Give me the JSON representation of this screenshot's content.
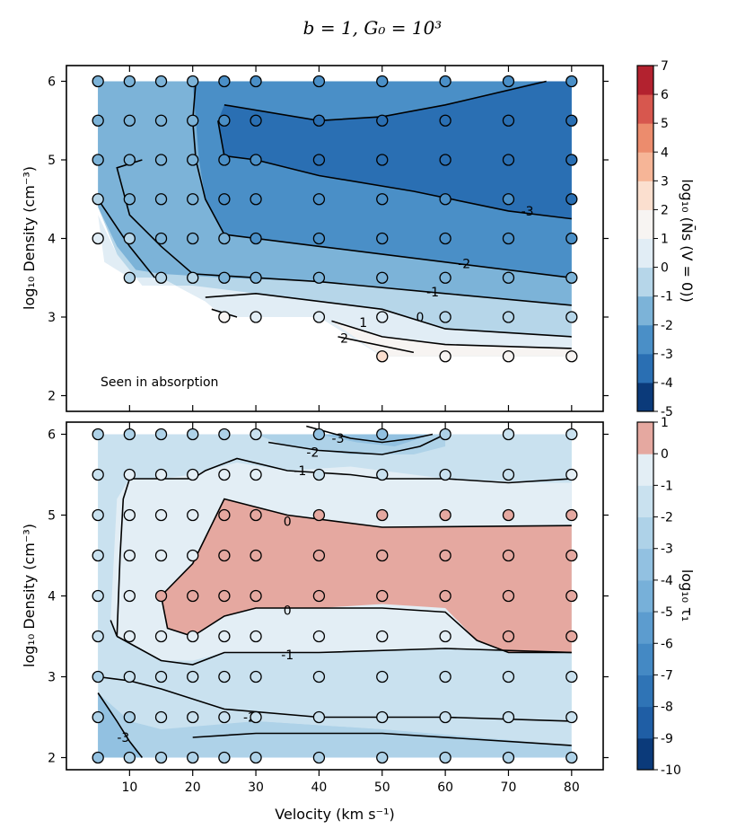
{
  "figure": {
    "title": "b = 1, G₀ = 10³"
  },
  "chart_data": [
    {
      "type": "contour",
      "panel": "top",
      "title": "",
      "xlabel": "",
      "ylabel": "log₁₀ Density (cm⁻³)",
      "xlim": [
        0,
        85
      ],
      "ylim": [
        1.8,
        6.2
      ],
      "xticks": [
        10,
        20,
        30,
        40,
        50,
        60,
        70,
        80
      ],
      "yticks": [
        2,
        3,
        4,
        5,
        6
      ],
      "colorbar": {
        "label": "log₁₀ (N̄s (V = 0))",
        "levels": [
          -5,
          -4,
          -3,
          -2,
          -1,
          0,
          1,
          2,
          3,
          4,
          5,
          6,
          7
        ],
        "tick_labels": [
          "-5",
          "-4",
          "-3",
          "-2",
          "-1",
          "0",
          "1",
          "2",
          "3",
          "4",
          "5",
          "6",
          "7"
        ]
      },
      "annotation": "Seen in absorption",
      "contour_labels": [
        "-3",
        "-2",
        "-1",
        "0",
        "1",
        "2"
      ],
      "points": [
        {
          "v": 5,
          "d": 6,
          "z": -1.5
        },
        {
          "v": 10,
          "d": 6,
          "z": -1.5
        },
        {
          "v": 15,
          "d": 6,
          "z": -1.5
        },
        {
          "v": 20,
          "d": 6,
          "z": -1.8
        },
        {
          "v": 25,
          "d": 6,
          "z": -2.2
        },
        {
          "v": 30,
          "d": 6,
          "z": -2.2
        },
        {
          "v": 40,
          "d": 6,
          "z": -2.3
        },
        {
          "v": 50,
          "d": 6,
          "z": -2.4
        },
        {
          "v": 60,
          "d": 6,
          "z": -2.5
        },
        {
          "v": 70,
          "d": 6,
          "z": -2.6
        },
        {
          "v": 80,
          "d": 6,
          "z": -2.8
        },
        {
          "v": 5,
          "d": 5.5,
          "z": -1.5
        },
        {
          "v": 10,
          "d": 5.5,
          "z": -1.5
        },
        {
          "v": 15,
          "d": 5.5,
          "z": -1.5
        },
        {
          "v": 20,
          "d": 5.5,
          "z": -1.8
        },
        {
          "v": 25,
          "d": 5.5,
          "z": -2.8
        },
        {
          "v": 30,
          "d": 5.5,
          "z": -3.2
        },
        {
          "v": 40,
          "d": 5.5,
          "z": -3.3
        },
        {
          "v": 50,
          "d": 5.5,
          "z": -3.3
        },
        {
          "v": 60,
          "d": 5.5,
          "z": -3.3
        },
        {
          "v": 70,
          "d": 5.5,
          "z": -3.3
        },
        {
          "v": 80,
          "d": 5.5,
          "z": -3.3
        },
        {
          "v": 5,
          "d": 5,
          "z": -1.2
        },
        {
          "v": 10,
          "d": 5,
          "z": -1.5
        },
        {
          "v": 15,
          "d": 5,
          "z": -1.5
        },
        {
          "v": 20,
          "d": 5,
          "z": -1.8
        },
        {
          "v": 25,
          "d": 5,
          "z": -2.8
        },
        {
          "v": 30,
          "d": 5,
          "z": -3.0
        },
        {
          "v": 40,
          "d": 5,
          "z": -3.2
        },
        {
          "v": 50,
          "d": 5,
          "z": -3.3
        },
        {
          "v": 60,
          "d": 5,
          "z": -3.3
        },
        {
          "v": 70,
          "d": 5,
          "z": -3.4
        },
        {
          "v": 80,
          "d": 5,
          "z": -3.4
        },
        {
          "v": 5,
          "d": 4.5,
          "z": -0.5
        },
        {
          "v": 10,
          "d": 4.5,
          "z": -1.2
        },
        {
          "v": 15,
          "d": 4.5,
          "z": -1.5
        },
        {
          "v": 20,
          "d": 4.5,
          "z": -1.8
        },
        {
          "v": 25,
          "d": 4.5,
          "z": -2.5
        },
        {
          "v": 30,
          "d": 4.5,
          "z": -2.6
        },
        {
          "v": 40,
          "d": 4.5,
          "z": -2.8
        },
        {
          "v": 50,
          "d": 4.5,
          "z": -2.9
        },
        {
          "v": 60,
          "d": 4.5,
          "z": -3.0
        },
        {
          "v": 70,
          "d": 4.5,
          "z": -3.0
        },
        {
          "v": 80,
          "d": 4.5,
          "z": -3.1
        },
        {
          "v": 5,
          "d": 4,
          "z": 0.5
        },
        {
          "v": 10,
          "d": 4,
          "z": -0.5
        },
        {
          "v": 15,
          "d": 4,
          "z": -1.2
        },
        {
          "v": 20,
          "d": 4,
          "z": -1.5
        },
        {
          "v": 25,
          "d": 4,
          "z": -2.0
        },
        {
          "v": 30,
          "d": 4,
          "z": -2.1
        },
        {
          "v": 40,
          "d": 4,
          "z": -2.3
        },
        {
          "v": 50,
          "d": 4,
          "z": -2.4
        },
        {
          "v": 60,
          "d": 4,
          "z": -2.5
        },
        {
          "v": 70,
          "d": 4,
          "z": -2.6
        },
        {
          "v": 80,
          "d": 4,
          "z": -2.7
        },
        {
          "v": 10,
          "d": 3.5,
          "z": -0.2
        },
        {
          "v": 15,
          "d": 3.5,
          "z": -0.8
        },
        {
          "v": 20,
          "d": 3.5,
          "z": -1.0
        },
        {
          "v": 25,
          "d": 3.5,
          "z": -1.1
        },
        {
          "v": 30,
          "d": 3.5,
          "z": -1.2
        },
        {
          "v": 40,
          "d": 3.5,
          "z": -1.5
        },
        {
          "v": 50,
          "d": 3.5,
          "z": -1.6
        },
        {
          "v": 60,
          "d": 3.5,
          "z": -1.7
        },
        {
          "v": 70,
          "d": 3.5,
          "z": -1.8
        },
        {
          "v": 80,
          "d": 3.5,
          "z": -2.0
        },
        {
          "v": 25,
          "d": 3,
          "z": 1.5
        },
        {
          "v": 30,
          "d": 3,
          "z": 0.5
        },
        {
          "v": 40,
          "d": 3,
          "z": 0.3
        },
        {
          "v": 50,
          "d": 3,
          "z": 0.0
        },
        {
          "v": 60,
          "d": 3,
          "z": -0.5
        },
        {
          "v": 70,
          "d": 3,
          "z": -0.6
        },
        {
          "v": 80,
          "d": 3,
          "z": -0.8
        },
        {
          "v": 50,
          "d": 2.5,
          "z": 2.2
        },
        {
          "v": 60,
          "d": 2.5,
          "z": 1.5
        },
        {
          "v": 70,
          "d": 2.5,
          "z": 1.4
        },
        {
          "v": 80,
          "d": 2.5,
          "z": 1.3
        }
      ]
    },
    {
      "type": "contour",
      "panel": "bottom",
      "title": "",
      "xlabel": "Velocity (km s⁻¹)",
      "ylabel": "log₁₀ Density (cm⁻³)",
      "xlim": [
        0,
        85
      ],
      "ylim": [
        1.85,
        6.15
      ],
      "xticks": [
        10,
        20,
        30,
        40,
        50,
        60,
        70,
        80
      ],
      "yticks": [
        2,
        3,
        4,
        5,
        6
      ],
      "colorbar": {
        "label": "log₁₀ τ₁",
        "levels": [
          -10,
          -9,
          -8,
          -7,
          -6,
          -5,
          -4,
          -3,
          -2,
          -1,
          0,
          1
        ],
        "tick_labels": [
          "-10",
          "-9",
          "-8",
          "-7",
          "-6",
          "-5",
          "-4",
          "-3",
          "-2",
          "-1",
          "0",
          "1"
        ]
      },
      "contour_labels": [
        "-3",
        "-2",
        "-1",
        "0",
        "0",
        "-1",
        "-2",
        "-3"
      ],
      "points": [
        {
          "v": 5,
          "d": 6,
          "z": -2.5
        },
        {
          "v": 10,
          "d": 6,
          "z": -2.5
        },
        {
          "v": 15,
          "d": 6,
          "z": -2.5
        },
        {
          "v": 20,
          "d": 6,
          "z": -2.4
        },
        {
          "v": 25,
          "d": 6,
          "z": -2.2
        },
        {
          "v": 30,
          "d": 6,
          "z": -2.0
        },
        {
          "v": 40,
          "d": 6,
          "z": -3.2
        },
        {
          "v": 50,
          "d": 6,
          "z": -3.5
        },
        {
          "v": 60,
          "d": 6,
          "z": -2.5
        },
        {
          "v": 70,
          "d": 6,
          "z": -2.0
        },
        {
          "v": 80,
          "d": 6,
          "z": -1.8
        },
        {
          "v": 5,
          "d": 5.5,
          "z": -1.8
        },
        {
          "v": 10,
          "d": 5.5,
          "z": -1.0
        },
        {
          "v": 15,
          "d": 5.5,
          "z": -1.0
        },
        {
          "v": 20,
          "d": 5.5,
          "z": -1.0
        },
        {
          "v": 25,
          "d": 5.5,
          "z": -0.9
        },
        {
          "v": 30,
          "d": 5.5,
          "z": -1.0
        },
        {
          "v": 40,
          "d": 5.5,
          "z": -1.5
        },
        {
          "v": 50,
          "d": 5.5,
          "z": -1.8
        },
        {
          "v": 60,
          "d": 5.5,
          "z": -1.2
        },
        {
          "v": 70,
          "d": 5.5,
          "z": -1.1
        },
        {
          "v": 80,
          "d": 5.5,
          "z": -1.0
        },
        {
          "v": 5,
          "d": 5,
          "z": -1.5
        },
        {
          "v": 10,
          "d": 5,
          "z": -0.5
        },
        {
          "v": 15,
          "d": 5,
          "z": -0.5
        },
        {
          "v": 20,
          "d": 5,
          "z": -0.4
        },
        {
          "v": 25,
          "d": 5,
          "z": 0.1
        },
        {
          "v": 30,
          "d": 5,
          "z": 0.3
        },
        {
          "v": 40,
          "d": 5,
          "z": 0.2
        },
        {
          "v": 50,
          "d": 5,
          "z": 0.1
        },
        {
          "v": 60,
          "d": 5,
          "z": 0.1
        },
        {
          "v": 70,
          "d": 5,
          "z": 0.2
        },
        {
          "v": 80,
          "d": 5,
          "z": 0.2
        },
        {
          "v": 5,
          "d": 4.5,
          "z": -1.5
        },
        {
          "v": 10,
          "d": 4.5,
          "z": -0.5
        },
        {
          "v": 15,
          "d": 4.5,
          "z": -0.3
        },
        {
          "v": 20,
          "d": 4.5,
          "z": -0.1
        },
        {
          "v": 25,
          "d": 4.5,
          "z": 0.4
        },
        {
          "v": 30,
          "d": 4.5,
          "z": 0.5
        },
        {
          "v": 40,
          "d": 4.5,
          "z": 0.5
        },
        {
          "v": 50,
          "d": 4.5,
          "z": 0.5
        },
        {
          "v": 60,
          "d": 4.5,
          "z": 0.5
        },
        {
          "v": 70,
          "d": 4.5,
          "z": 0.5
        },
        {
          "v": 80,
          "d": 4.5,
          "z": 0.5
        },
        {
          "v": 5,
          "d": 4,
          "z": -1.5
        },
        {
          "v": 10,
          "d": 4,
          "z": -0.5
        },
        {
          "v": 15,
          "d": 4,
          "z": 0.0
        },
        {
          "v": 20,
          "d": 4,
          "z": 0.3
        },
        {
          "v": 25,
          "d": 4,
          "z": 0.3
        },
        {
          "v": 30,
          "d": 4,
          "z": 0.3
        },
        {
          "v": 40,
          "d": 4,
          "z": 0.3
        },
        {
          "v": 50,
          "d": 4,
          "z": 0.4
        },
        {
          "v": 60,
          "d": 4,
          "z": 0.3
        },
        {
          "v": 70,
          "d": 4,
          "z": 0.4
        },
        {
          "v": 80,
          "d": 4,
          "z": 0.5
        },
        {
          "v": 5,
          "d": 3.5,
          "z": -1.5
        },
        {
          "v": 10,
          "d": 3.5,
          "z": -0.5
        },
        {
          "v": 15,
          "d": 3.5,
          "z": -0.3
        },
        {
          "v": 20,
          "d": 3.5,
          "z": -0.2
        },
        {
          "v": 25,
          "d": 3.5,
          "z": -0.4
        },
        {
          "v": 30,
          "d": 3.5,
          "z": -0.5
        },
        {
          "v": 40,
          "d": 3.5,
          "z": -0.5
        },
        {
          "v": 50,
          "d": 3.5,
          "z": -0.4
        },
        {
          "v": 60,
          "d": 3.5,
          "z": -0.3
        },
        {
          "v": 70,
          "d": 3.5,
          "z": 0.1
        },
        {
          "v": 80,
          "d": 3.5,
          "z": 0.2
        },
        {
          "v": 5,
          "d": 3,
          "z": -2.2
        },
        {
          "v": 10,
          "d": 3,
          "z": -1.5
        },
        {
          "v": 15,
          "d": 3,
          "z": -1.3
        },
        {
          "v": 20,
          "d": 3,
          "z": -1.2
        },
        {
          "v": 25,
          "d": 3,
          "z": -1.1
        },
        {
          "v": 30,
          "d": 3,
          "z": -1.1
        },
        {
          "v": 40,
          "d": 3,
          "z": -1.2
        },
        {
          "v": 50,
          "d": 3,
          "z": -1.2
        },
        {
          "v": 60,
          "d": 3,
          "z": -1.2
        },
        {
          "v": 70,
          "d": 3,
          "z": -1.2
        },
        {
          "v": 80,
          "d": 3,
          "z": -1.2
        },
        {
          "v": 5,
          "d": 2.5,
          "z": -2.8
        },
        {
          "v": 10,
          "d": 2.5,
          "z": -2.3
        },
        {
          "v": 15,
          "d": 2.5,
          "z": -2.0
        },
        {
          "v": 20,
          "d": 2.5,
          "z": -1.9
        },
        {
          "v": 25,
          "d": 2.5,
          "z": -1.9
        },
        {
          "v": 30,
          "d": 2.5,
          "z": -1.9
        },
        {
          "v": 40,
          "d": 2.5,
          "z": -1.8
        },
        {
          "v": 50,
          "d": 2.5,
          "z": -1.7
        },
        {
          "v": 60,
          "d": 2.5,
          "z": -1.7
        },
        {
          "v": 70,
          "d": 2.5,
          "z": -1.6
        },
        {
          "v": 80,
          "d": 2.5,
          "z": -1.6
        },
        {
          "v": 5,
          "d": 2,
          "z": -3.5
        },
        {
          "v": 10,
          "d": 2,
          "z": -3.0
        },
        {
          "v": 15,
          "d": 2,
          "z": -2.6
        },
        {
          "v": 20,
          "d": 2,
          "z": -2.4
        },
        {
          "v": 25,
          "d": 2,
          "z": -2.3
        },
        {
          "v": 30,
          "d": 2,
          "z": -2.3
        },
        {
          "v": 40,
          "d": 2,
          "z": -2.3
        },
        {
          "v": 50,
          "d": 2,
          "z": -2.2
        },
        {
          "v": 60,
          "d": 2,
          "z": -2.2
        },
        {
          "v": 70,
          "d": 2,
          "z": -2.1
        },
        {
          "v": 80,
          "d": 2,
          "z": -2.1
        }
      ]
    }
  ]
}
